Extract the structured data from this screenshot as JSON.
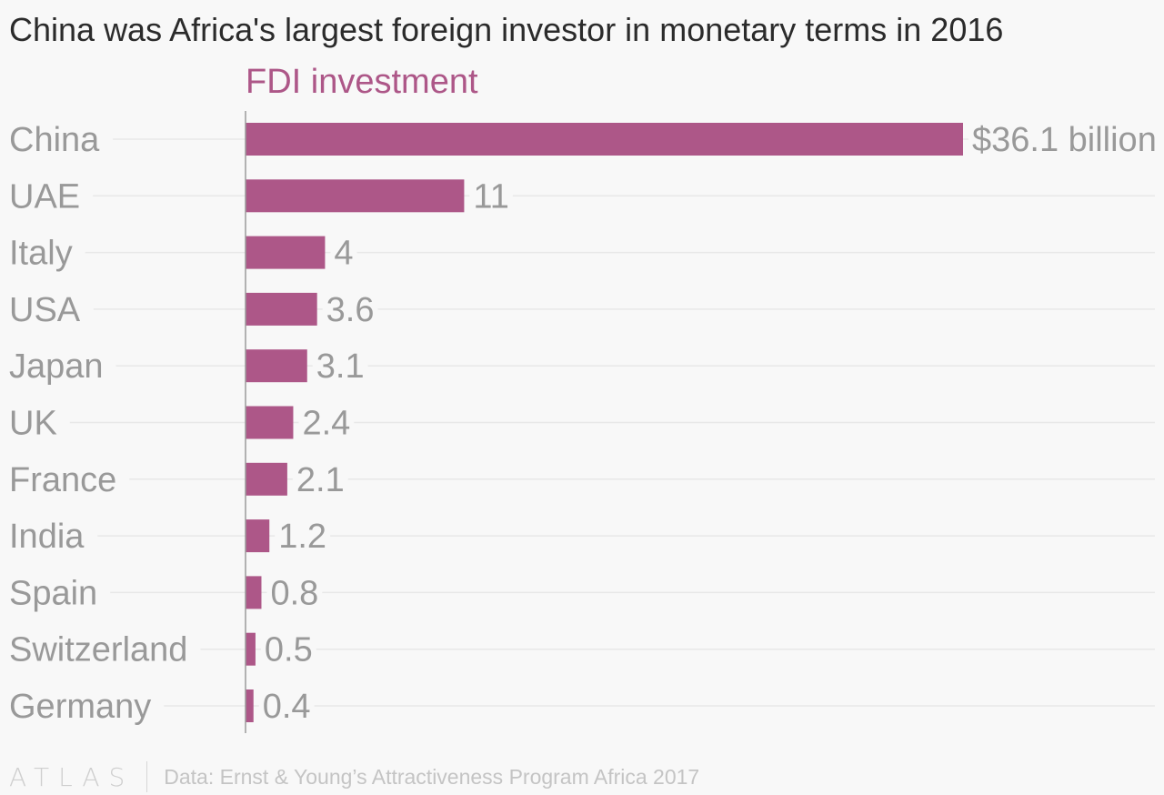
{
  "title": "China was Africa's largest foreign investor in monetary terms in 2016",
  "footer": {
    "logo": "ATLAS",
    "source": "Data: Ernst & Young’s Attractiveness Program Africa 2017"
  },
  "colors": {
    "bar": "#ad5788",
    "series_label": "#ad5788",
    "text_muted": "#999999",
    "grid": "#e8e8e8",
    "axis": "#9a9a9a",
    "background": "#f8f8f8"
  },
  "chart_data": {
    "type": "bar",
    "orientation": "horizontal",
    "title": "China was Africa's largest foreign investor in monetary terms in 2016",
    "categories": [
      "China",
      "UAE",
      "Italy",
      "USA",
      "Japan",
      "UK",
      "France",
      "India",
      "Spain",
      "Switzerland",
      "Germany"
    ],
    "series": [
      {
        "name": "FDI investment",
        "values": [
          36.1,
          11,
          4,
          3.6,
          3.1,
          2.4,
          2.1,
          1.2,
          0.8,
          0.5,
          0.4
        ],
        "labels": [
          "$36.1 billion",
          "11",
          "4",
          "3.6",
          "3.1",
          "2.4",
          "2.1",
          "1.2",
          "0.8",
          "0.5",
          "0.4"
        ]
      }
    ],
    "xlim": [
      0,
      36.1
    ],
    "grid": true,
    "legend": "none"
  }
}
